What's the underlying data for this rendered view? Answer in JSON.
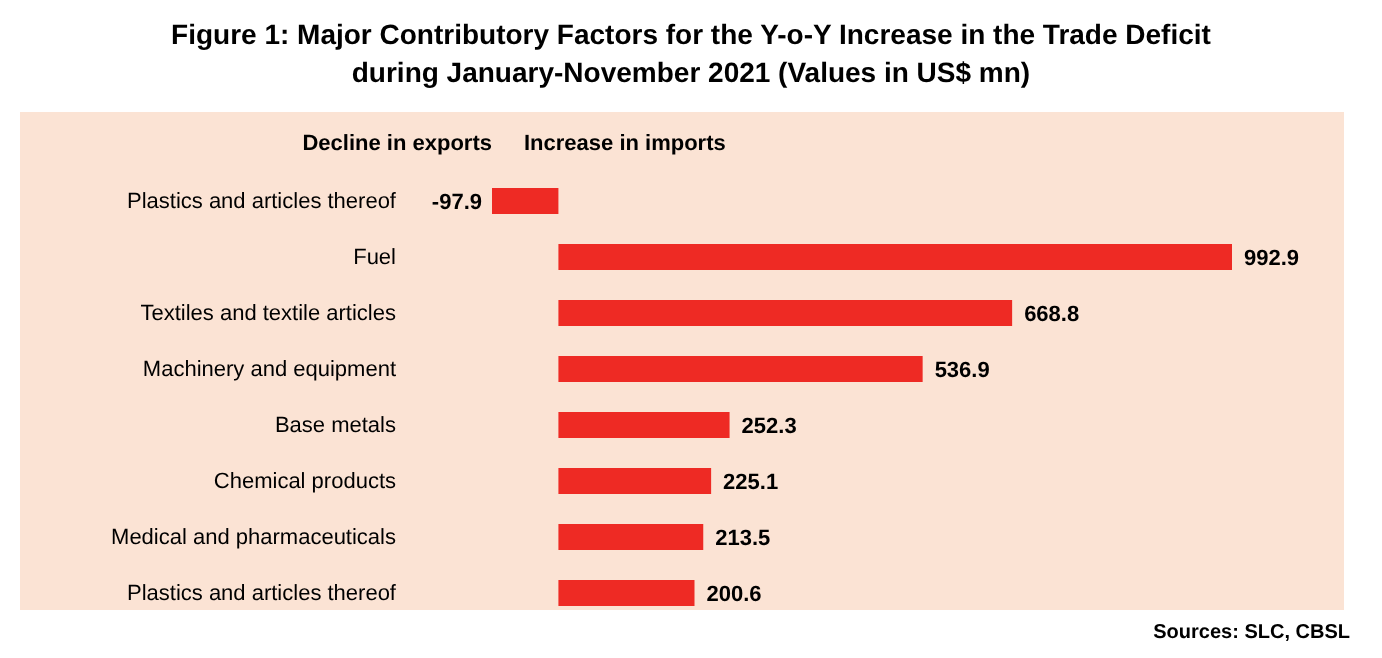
{
  "chart_data": {
    "type": "bar",
    "orientation": "horizontal",
    "title": "Figure 1: Major Contributory Factors for the Y-o-Y Increase in the Trade Deficit during January-November 2021 (Values in US$ mn)",
    "categories": [
      "Plastics and articles thereof",
      "Fuel",
      "Textiles and textile articles",
      "Machinery and equipment",
      "Base metals",
      "Chemical products",
      "Medical and pharmaceuticals",
      "Plastics  and articles thereof"
    ],
    "values": [
      -97.9,
      992.9,
      668.8,
      536.9,
      252.3,
      225.1,
      213.5,
      200.6
    ],
    "color": "#ee2a24",
    "data_labels": true,
    "grid": false,
    "legend": false,
    "annotations": [
      "Decline in exports",
      "Increase in imports",
      "Sources: SLC, CBSL"
    ]
  }
}
